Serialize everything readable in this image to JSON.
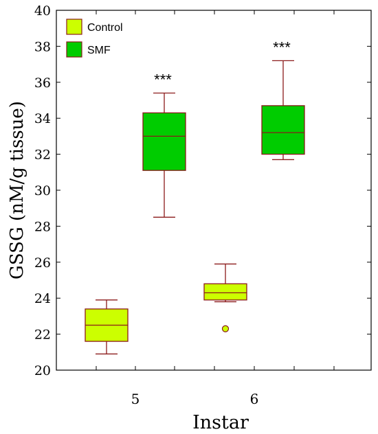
{
  "chart_data": {
    "type": "box",
    "xlabel": "Instar",
    "ylabel": "GSSG (nM/g tissue)",
    "ylim": [
      20,
      40
    ],
    "yticks": [
      20,
      22,
      24,
      26,
      28,
      30,
      32,
      34,
      36,
      38,
      40
    ],
    "categories": [
      "5",
      "6"
    ],
    "grid": false,
    "legend_position": "top-left",
    "series": [
      {
        "name": "Control",
        "color": "#ccff00",
        "boxes": [
          {
            "category": "5",
            "whisker_low": 20.9,
            "q1": 21.6,
            "median": 22.5,
            "q3": 23.4,
            "whisker_high": 23.9,
            "outliers": []
          },
          {
            "category": "6",
            "whisker_low": 23.8,
            "q1": 23.9,
            "median": 24.3,
            "q3": 24.8,
            "whisker_high": 25.9,
            "outliers": [
              22.3
            ]
          }
        ]
      },
      {
        "name": "SMF",
        "color": "#00cc00",
        "boxes": [
          {
            "category": "5",
            "whisker_low": 28.5,
            "q1": 31.1,
            "median": 33.0,
            "q3": 34.3,
            "whisker_high": 35.4,
            "annotation": "***"
          },
          {
            "category": "6",
            "whisker_low": 31.7,
            "q1": 32.0,
            "median": 33.2,
            "q3": 34.7,
            "whisker_high": 37.2,
            "annotation": "***"
          }
        ]
      }
    ]
  }
}
